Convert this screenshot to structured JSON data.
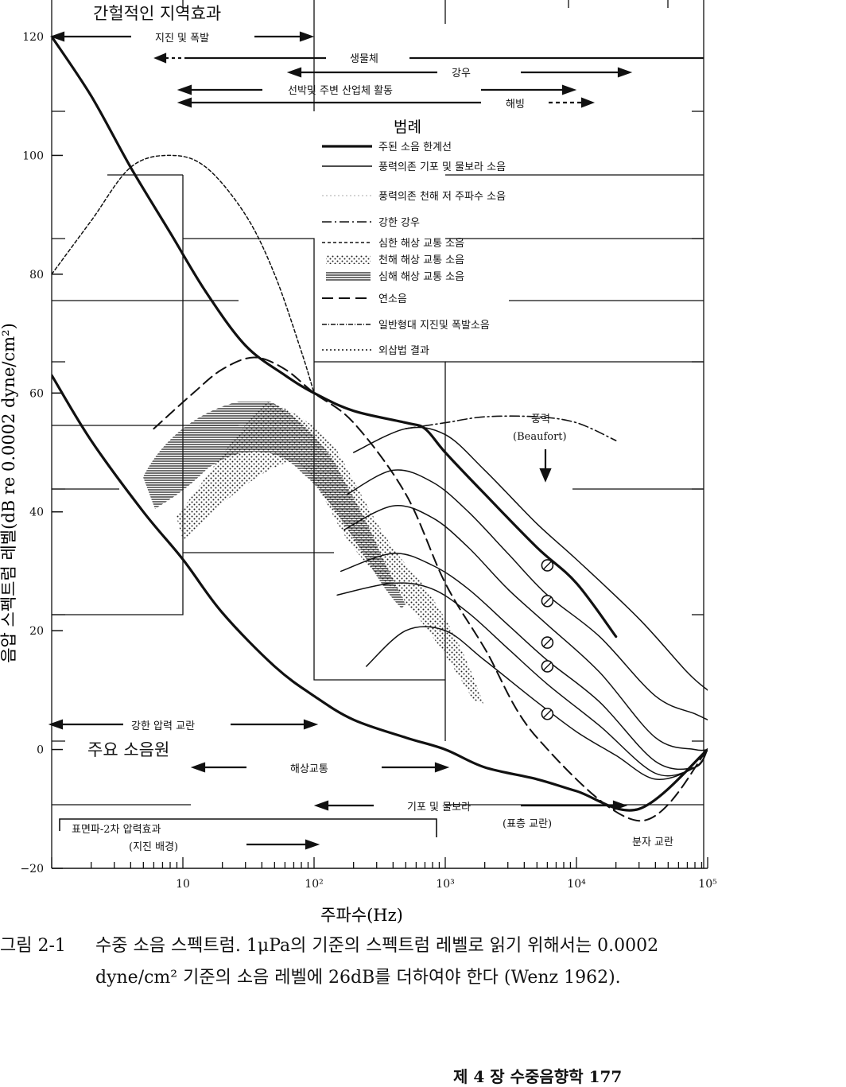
{
  "chart_data": {
    "type": "line",
    "title": "",
    "xlabel": "주파수(Hz)",
    "ylabel": "음압 스펙트럼 레벨(dB re 0.0002 dyne/cm²)",
    "x_scale": "log",
    "xlim": [
      1,
      100000
    ],
    "ylim": [
      -20,
      120
    ],
    "grid": false,
    "x_tick_labels": [
      "10",
      "10²",
      "10³",
      "10⁴",
      "10⁵"
    ],
    "x_tick_values": [
      10,
      100,
      1000,
      10000,
      100000
    ],
    "y_ticks": [
      120,
      100,
      80,
      60,
      40,
      20,
      0,
      -20
    ],
    "series": [
      {
        "name": "주된 소음 한계선",
        "style": "heavy",
        "x": [
          1,
          2,
          4,
          8,
          15,
          30,
          60,
          100,
          200,
          500,
          700,
          1000,
          2000,
          5000,
          10000,
          20000
        ],
        "y": [
          120,
          110,
          98,
          87,
          77,
          68,
          63,
          60,
          57,
          55,
          54,
          50,
          43,
          34,
          28,
          19
        ]
      },
      {
        "name": "",
        "style": "heavy",
        "x": [
          1,
          2,
          5,
          10,
          20,
          50,
          100,
          200,
          500,
          1000,
          2000,
          5000,
          10000,
          30000,
          100000
        ],
        "y": [
          63,
          52,
          40,
          32,
          23,
          14,
          9,
          5,
          2,
          0,
          -3,
          -5,
          -7,
          -10,
          0
        ]
      },
      {
        "name": "심한 해상 교통 소음",
        "style": "short-dash",
        "x": [
          1,
          2,
          4,
          8,
          15,
          30,
          50,
          80,
          100
        ],
        "y": [
          80,
          89,
          98,
          100,
          98,
          90,
          80,
          67,
          60
        ]
      },
      {
        "name": "연소음",
        "style": "long-dash",
        "x": [
          6,
          12,
          20,
          35,
          60,
          100,
          200,
          500,
          1000,
          2000,
          5000,
          30000,
          100000
        ],
        "y": [
          54,
          60,
          64,
          66,
          64,
          60,
          55,
          43,
          28,
          17,
          2,
          -12,
          0
        ]
      },
      {
        "name": "강한 강우",
        "style": "dash-dot",
        "x": [
          500,
          1000,
          2000,
          5000,
          10000,
          20000
        ],
        "y": [
          54,
          55,
          56,
          56,
          55,
          52
        ]
      },
      {
        "name": "풍력의존 기포 및 물보라 소음",
        "style": "thin",
        "x": [
          200,
          500,
          1000,
          2000,
          5000,
          10000,
          30000,
          70000,
          100000
        ],
        "y": [
          50,
          54,
          53,
          47,
          38,
          32,
          22,
          13,
          10
        ]
      },
      {
        "name": "",
        "style": "thin",
        "x": [
          180,
          400,
          800,
          1500,
          3000,
          6000,
          15000,
          40000,
          80000,
          100000
        ],
        "y": [
          43,
          47,
          45,
          40,
          33,
          26,
          19,
          9,
          6,
          5
        ]
      },
      {
        "name": "",
        "style": "thin",
        "x": [
          170,
          400,
          800,
          1500,
          3000,
          6000,
          15000,
          40000,
          80000,
          100000
        ],
        "y": [
          37,
          41,
          39,
          34,
          27,
          21,
          13,
          2,
          0,
          0
        ]
      },
      {
        "name": "",
        "style": "thin",
        "x": [
          160,
          400,
          800,
          1500,
          3000,
          6000,
          15000,
          40000,
          80000,
          100000
        ],
        "y": [
          30,
          33,
          31,
          27,
          21,
          15,
          8,
          -2,
          -3,
          0
        ]
      },
      {
        "name": "",
        "style": "thin",
        "x": [
          150,
          400,
          800,
          1500,
          3000,
          6000,
          15000,
          40000,
          80000,
          100000
        ],
        "y": [
          26,
          28,
          27,
          23,
          17,
          11,
          4,
          -4,
          -3,
          0
        ]
      },
      {
        "name": "",
        "style": "thin",
        "x": [
          250,
          500,
          1000,
          2000,
          5000,
          10000,
          20000,
          40000,
          80000,
          100000
        ],
        "y": [
          14,
          20,
          20,
          15,
          8,
          3,
          -1,
          -5,
          -3,
          0
        ]
      }
    ],
    "wind_markers": {
      "x": 6000,
      "y": [
        31,
        25,
        18,
        14,
        6
      ]
    },
    "annotations": {
      "top_left_title": "간헐적인 지역효과",
      "bottom_left_title": "주요 소음원",
      "earthquake": "지진 및 폭발",
      "biological": "생물체",
      "rain": "강우",
      "shipping_industry": "선박및 주변 산업체 활동",
      "ice": "해빙",
      "beaufort_kr": "풍력",
      "beaufort_en": "(Beaufort)",
      "pressure": "강한 압력 교란",
      "traffic": "해상교통",
      "bubbles": "기포 및 물보라",
      "surface": "(표층 교란)",
      "seismic": "표면파-2차 압력효과",
      "seismic_sub": "(지진 배경)",
      "molecular": "분자 교란"
    },
    "legend": {
      "title": "범례",
      "items": [
        {
          "label": "주된 소음 한계선",
          "style": "heavy"
        },
        {
          "label": "풍력의존 기포 및 물보라 소음",
          "style": "thin"
        },
        {
          "label": "풍력의존 천해 저 주파수 소음",
          "style": "faint-dotted"
        },
        {
          "label": "강한 강우",
          "style": "dash-dot"
        },
        {
          "label": "심한 해상 교통 소음",
          "style": "short-dash"
        },
        {
          "label": "천해 해상 교통 소음",
          "style": "stipple"
        },
        {
          "label": "심해 해상 교통 소음",
          "style": "hatched"
        },
        {
          "label": "연소음",
          "style": "long-dash"
        },
        {
          "label": "일반형대 지진및 폭발소음",
          "style": "dot-dash-fine"
        },
        {
          "label": "외삽법 결과",
          "style": "dotted"
        }
      ]
    }
  },
  "caption": {
    "label": "그림 2-1",
    "text": "수중 소음 스펙트럼. 1μPa의 기준의 스펙트럼 레벨로 읽기 위해서는 0.0002 dyne/cm² 기준의 소음 레벨에 26dB를 더하여야 한다 (Wenz 1962)."
  },
  "footer": "제 4 장 수중음향학 177"
}
